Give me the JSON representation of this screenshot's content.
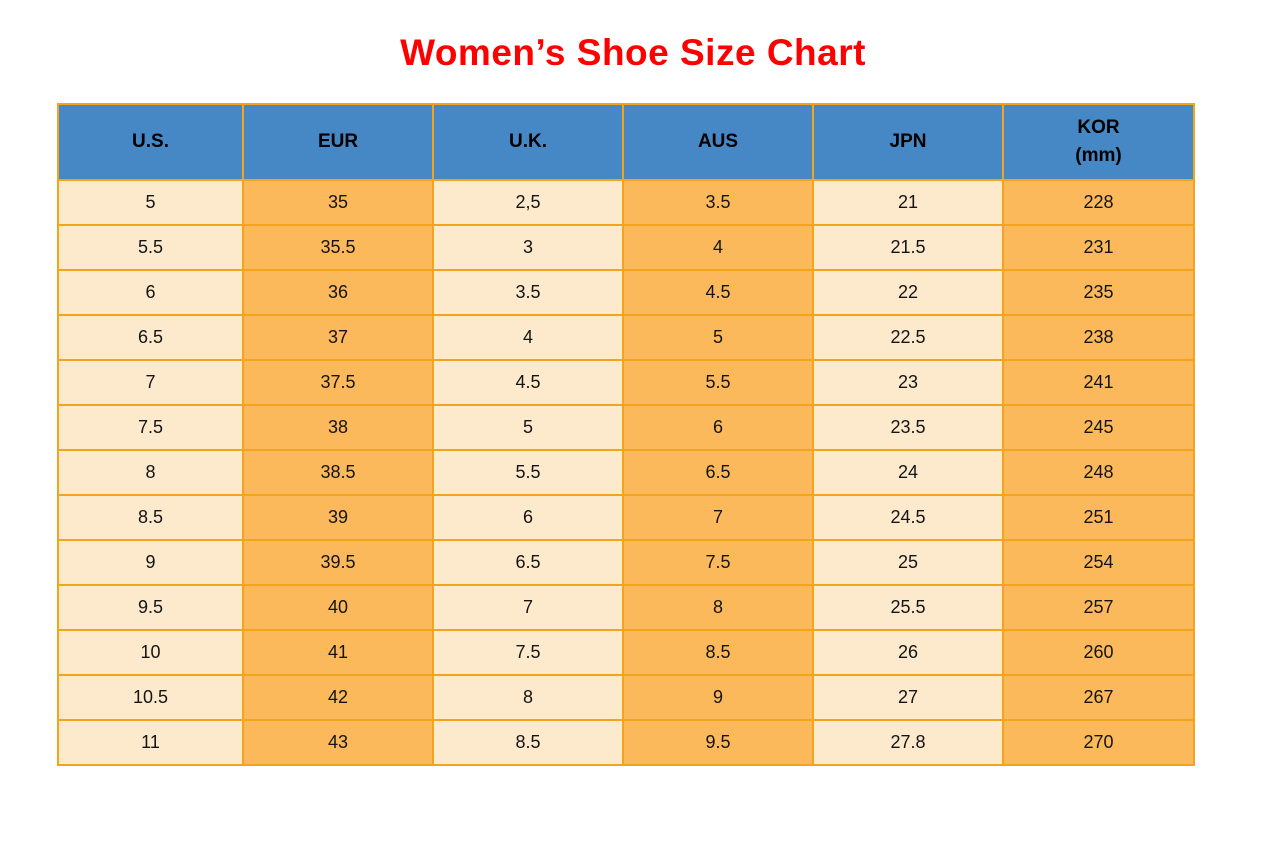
{
  "title": "Women’s Shoe Size Chart",
  "table": {
    "headers": [
      "U.S.",
      "EUR",
      "U.K.",
      "AUS",
      "JPN",
      "KOR\n(mm)"
    ],
    "rows": [
      [
        "5",
        "35",
        "2,5",
        "3.5",
        "21",
        "228"
      ],
      [
        "5.5",
        "35.5",
        "3",
        "4",
        "21.5",
        "231"
      ],
      [
        "6",
        "36",
        "3.5",
        "4.5",
        "22",
        "235"
      ],
      [
        "6.5",
        "37",
        "4",
        "5",
        "22.5",
        "238"
      ],
      [
        "7",
        "37.5",
        "4.5",
        "5.5",
        "23",
        "241"
      ],
      [
        "7.5",
        "38",
        "5",
        "6",
        "23.5",
        "245"
      ],
      [
        "8",
        "38.5",
        "5.5",
        "6.5",
        "24",
        "248"
      ],
      [
        "8.5",
        "39",
        "6",
        "7",
        "24.5",
        "251"
      ],
      [
        "9",
        "39.5",
        "6.5",
        "7.5",
        "25",
        "254"
      ],
      [
        "9.5",
        "40",
        "7",
        "8",
        "25.5",
        "257"
      ],
      [
        "10",
        "41",
        "7.5",
        "8.5",
        "26",
        "260"
      ],
      [
        "10.5",
        "42",
        "8",
        "9",
        "27",
        "267"
      ],
      [
        "11",
        "43",
        "8.5",
        "9.5",
        "27.8",
        "270"
      ]
    ]
  },
  "colors": {
    "title_red": "#ff0000",
    "header_blue": "#4688c6",
    "cream_cell": "#fdeacd",
    "orange_cell": "#fcb95c",
    "border_orange": "#f2a41c",
    "text": "#141414"
  },
  "chart_data": {
    "type": "table",
    "title": "Women’s Shoe Size Chart",
    "columns": [
      "U.S.",
      "EUR",
      "U.K.",
      "AUS",
      "JPN",
      "KOR (mm)"
    ],
    "rows": [
      [
        "5",
        "35",
        "2,5",
        "3.5",
        "21",
        "228"
      ],
      [
        "5.5",
        "35.5",
        "3",
        "4",
        "21.5",
        "231"
      ],
      [
        "6",
        "36",
        "3.5",
        "4.5",
        "22",
        "235"
      ],
      [
        "6.5",
        "37",
        "4",
        "5",
        "22.5",
        "238"
      ],
      [
        "7",
        "37.5",
        "4.5",
        "5.5",
        "23",
        "241"
      ],
      [
        "7.5",
        "38",
        "5",
        "6",
        "23.5",
        "245"
      ],
      [
        "8",
        "38.5",
        "5.5",
        "6.5",
        "24",
        "248"
      ],
      [
        "8.5",
        "39",
        "6",
        "7",
        "24.5",
        "251"
      ],
      [
        "9",
        "39.5",
        "6.5",
        "7.5",
        "25",
        "254"
      ],
      [
        "9.5",
        "40",
        "7",
        "8",
        "25.5",
        "257"
      ],
      [
        "10",
        "41",
        "7.5",
        "8.5",
        "26",
        "260"
      ],
      [
        "10.5",
        "42",
        "8",
        "9",
        "27",
        "267"
      ],
      [
        "11",
        "43",
        "8.5",
        "9.5",
        "27.8",
        "270"
      ]
    ],
    "layout": {
      "header_bg": "#4688c6",
      "column_fill_pattern": [
        "cream",
        "orange",
        "cream",
        "orange",
        "cream",
        "orange"
      ],
      "grid": true,
      "legend": "none"
    }
  }
}
